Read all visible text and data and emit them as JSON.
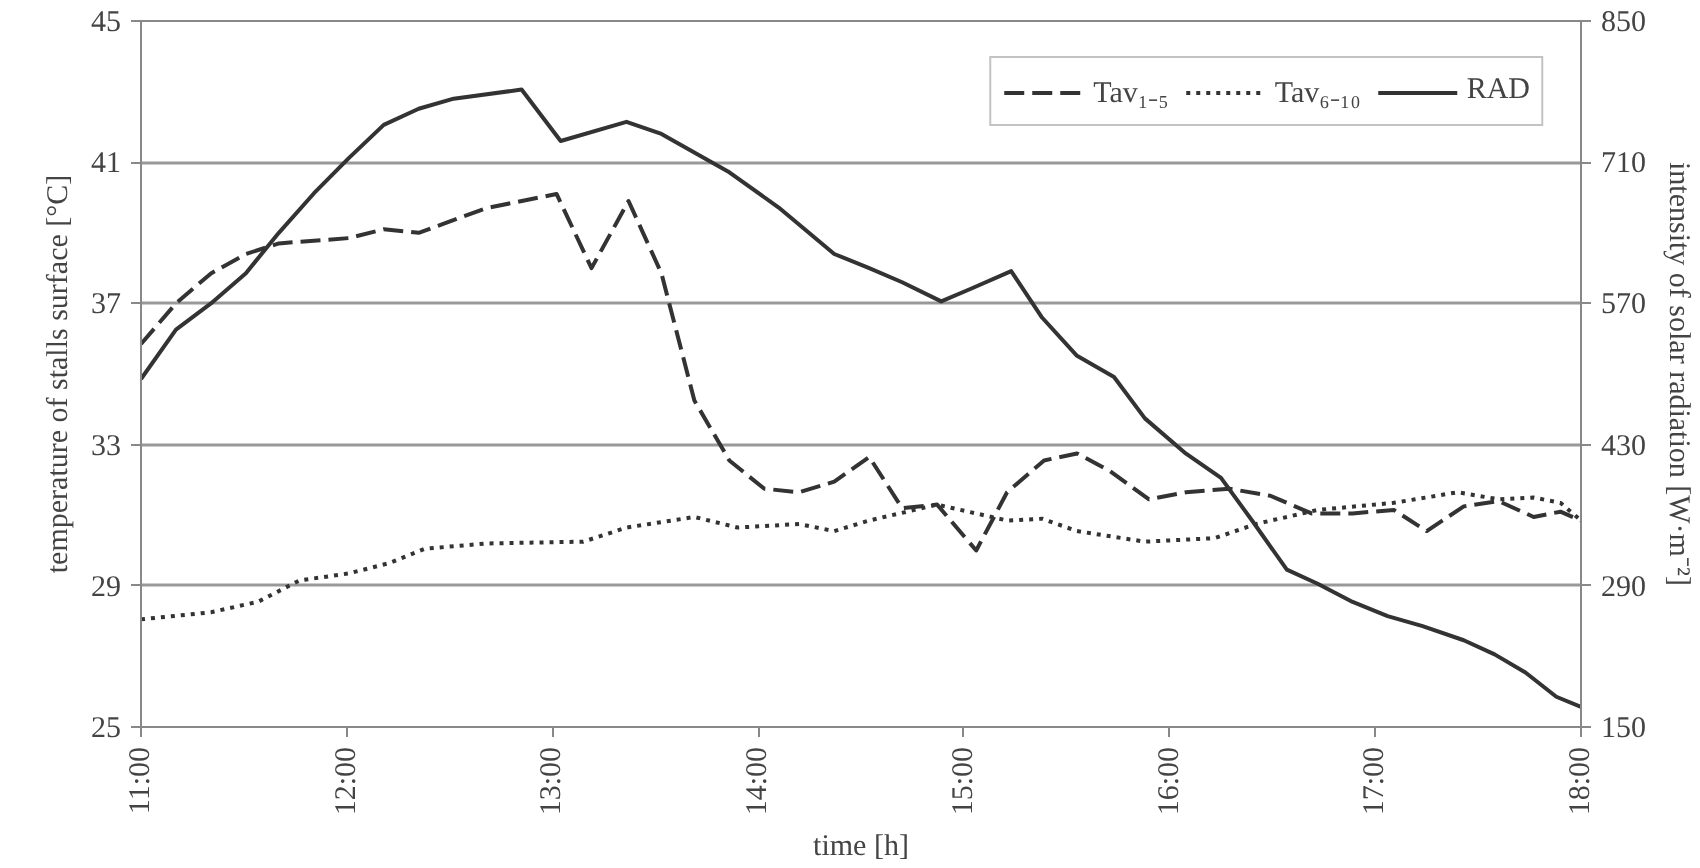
{
  "chart_data": {
    "type": "line",
    "xlabel": "time [h]",
    "ylabel": "temperature of stalls surface [°C]",
    "y2label": "intensity of solar radiation [W·m⁻²]",
    "xlim": [
      11,
      18
    ],
    "xticks": [
      {
        "value": 11,
        "label": "11:00"
      },
      {
        "value": 12,
        "label": "12:00"
      },
      {
        "value": 13,
        "label": "13:00"
      },
      {
        "value": 14,
        "label": "14:00"
      },
      {
        "value": 15,
        "label": "15:00"
      },
      {
        "value": 16,
        "label": "16:00"
      },
      {
        "value": 17,
        "label": "17:00"
      },
      {
        "value": 18,
        "label": "18:00"
      }
    ],
    "ylim": [
      25,
      45
    ],
    "yticks": [
      25,
      29,
      33,
      37,
      41,
      45
    ],
    "y2lim": [
      150,
      850
    ],
    "y2ticks": [
      150,
      290,
      430,
      570,
      710,
      850
    ],
    "grid": "y",
    "legend": "top right",
    "marker": "none",
    "series": [
      {
        "name": "Tav₁₋₅",
        "color": "#333333",
        "line_style": "dashed",
        "x": [
          11,
          11.17,
          11.34,
          11.51,
          11.67,
          12.01,
          12.18,
          12.35,
          12.68,
          13.02,
          13.19,
          13.37,
          13.53,
          13.69,
          13.86,
          14.03,
          14.2,
          14.37,
          14.54,
          14.7,
          14.87,
          15.06,
          15.21,
          15.39,
          15.55,
          15.71,
          15.9,
          16.08,
          16.29,
          16.49,
          16.69,
          16.89,
          17.09,
          17.25,
          17.43,
          17.6,
          17.77,
          17.9,
          18.0
        ],
        "values": [
          35.85,
          37.0,
          37.85,
          38.4,
          38.7,
          38.85,
          39.1,
          39.0,
          39.7,
          40.1,
          38.0,
          39.9,
          37.85,
          34.25,
          32.55,
          31.75,
          31.65,
          31.95,
          32.65,
          31.2,
          31.3,
          30.0,
          31.65,
          32.55,
          32.75,
          32.25,
          31.45,
          31.65,
          31.75,
          31.55,
          31.05,
          31.05,
          31.15,
          30.55,
          31.25,
          31.4,
          30.95,
          31.1,
          30.85
        ]
      },
      {
        "name": "Tav₆₋₁₀",
        "color": "#333333",
        "line_style": "dotted",
        "x": [
          11,
          11.34,
          11.57,
          11.77,
          12.01,
          12.21,
          12.38,
          12.68,
          13.15,
          13.36,
          13.69,
          13.9,
          14.2,
          14.37,
          14.54,
          14.87,
          15.21,
          15.38,
          15.55,
          15.88,
          16.22,
          16.42,
          16.72,
          17.09,
          17.4,
          17.6,
          17.77,
          17.9,
          18.0
        ],
        "values": [
          28.05,
          28.25,
          28.55,
          29.15,
          29.35,
          29.65,
          30.05,
          30.2,
          30.25,
          30.65,
          30.95,
          30.65,
          30.75,
          30.55,
          30.85,
          31.3,
          30.85,
          30.9,
          30.55,
          30.25,
          30.35,
          30.75,
          31.15,
          31.35,
          31.65,
          31.45,
          31.5,
          31.35,
          30.85
        ]
      },
      {
        "name": "RAD",
        "color": "#333333",
        "line_style": "solid",
        "axis": "y2",
        "x": [
          11,
          11.17,
          11.34,
          11.51,
          11.67,
          11.84,
          12.01,
          12.18,
          12.35,
          12.52,
          12.85,
          13.04,
          13.36,
          13.53,
          13.86,
          14.1,
          14.37,
          14.54,
          14.7,
          14.89,
          15.04,
          15.23,
          15.38,
          15.55,
          15.73,
          15.88,
          16.08,
          16.25,
          16.4,
          16.57,
          16.72,
          16.89,
          17.06,
          17.23,
          17.43,
          17.58,
          17.73,
          17.88,
          18.0
        ],
        "values": [
          495,
          544,
          570,
          600,
          640,
          679,
          714,
          747,
          763,
          773,
          782,
          731,
          750,
          738,
          700,
          665,
          619,
          605,
          591,
          572,
          585,
          602,
          556,
          518,
          497,
          456,
          421,
          397,
          355,
          306,
          292,
          274,
          260,
          250,
          236,
          222,
          204,
          180,
          170
        ]
      }
    ]
  }
}
